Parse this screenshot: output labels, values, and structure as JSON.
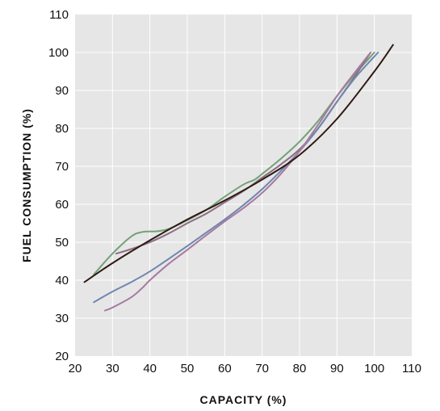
{
  "chart_data": {
    "type": "line",
    "title": "",
    "xlabel": "CAPACITY (%)",
    "ylabel": "FUEL CONSUMPTION (%)",
    "xlim": [
      20,
      110
    ],
    "ylim": [
      20,
      110
    ],
    "xticks": [
      20,
      30,
      40,
      50,
      60,
      70,
      80,
      90,
      100,
      110
    ],
    "yticks": [
      20,
      30,
      40,
      50,
      60,
      70,
      80,
      90,
      100,
      110
    ],
    "grid": true,
    "legend": "none",
    "colors": {
      "plot_background": "#e6e6e6",
      "gridline": "#ffffff"
    },
    "series": [
      {
        "color": "#72a176",
        "points": [
          [
            25,
            41.5
          ],
          [
            30,
            47
          ],
          [
            35,
            51.5
          ],
          [
            38,
            52.7
          ],
          [
            42,
            52.9
          ],
          [
            45,
            53.5
          ],
          [
            50,
            55.8
          ],
          [
            55,
            58.5
          ],
          [
            60,
            62
          ],
          [
            65,
            65.2
          ],
          [
            68,
            66.5
          ],
          [
            70,
            68
          ],
          [
            75,
            72
          ],
          [
            80,
            76.5
          ],
          [
            85,
            82
          ],
          [
            90,
            88.5
          ],
          [
            95,
            94.5
          ],
          [
            100,
            100
          ]
        ]
      },
      {
        "color": "#8a6d84",
        "points": [
          [
            31,
            47
          ],
          [
            35,
            48.2
          ],
          [
            40,
            50
          ],
          [
            45,
            52.3
          ],
          [
            50,
            55
          ],
          [
            55,
            57.5
          ],
          [
            60,
            60.5
          ],
          [
            65,
            63.5
          ],
          [
            70,
            67
          ],
          [
            75,
            70.5
          ],
          [
            80,
            74.5
          ],
          [
            85,
            80
          ],
          [
            90,
            87
          ],
          [
            95,
            94
          ],
          [
            99,
            100
          ]
        ]
      },
      {
        "color": "#6f87ad",
        "points": [
          [
            25,
            34.2
          ],
          [
            30,
            37
          ],
          [
            35,
            39.5
          ],
          [
            40,
            42.3
          ],
          [
            45,
            45.6
          ],
          [
            50,
            49
          ],
          [
            55,
            52.5
          ],
          [
            60,
            56
          ],
          [
            65,
            59.8
          ],
          [
            70,
            64
          ],
          [
            75,
            68.8
          ],
          [
            80,
            74
          ],
          [
            85,
            80
          ],
          [
            90,
            87
          ],
          [
            95,
            93.5
          ],
          [
            101,
            100
          ]
        ]
      },
      {
        "color": "#a67aa1",
        "points": [
          [
            28,
            32
          ],
          [
            30,
            32.8
          ],
          [
            35,
            35.5
          ],
          [
            38,
            38
          ],
          [
            40,
            40
          ],
          [
            45,
            44.3
          ],
          [
            50,
            48
          ],
          [
            55,
            51.8
          ],
          [
            60,
            55.5
          ],
          [
            65,
            59
          ],
          [
            70,
            63
          ],
          [
            75,
            68
          ],
          [
            80,
            74
          ],
          [
            85,
            81
          ],
          [
            90,
            88.5
          ],
          [
            95,
            95
          ],
          [
            99,
            100
          ]
        ]
      },
      {
        "color": "#2e1a12",
        "points": [
          [
            22.5,
            39.5
          ],
          [
            30,
            44.5
          ],
          [
            40,
            50.5
          ],
          [
            50,
            56
          ],
          [
            60,
            61
          ],
          [
            70,
            66.5
          ],
          [
            80,
            73
          ],
          [
            90,
            82.5
          ],
          [
            100,
            95
          ],
          [
            105,
            102
          ]
        ]
      }
    ]
  }
}
